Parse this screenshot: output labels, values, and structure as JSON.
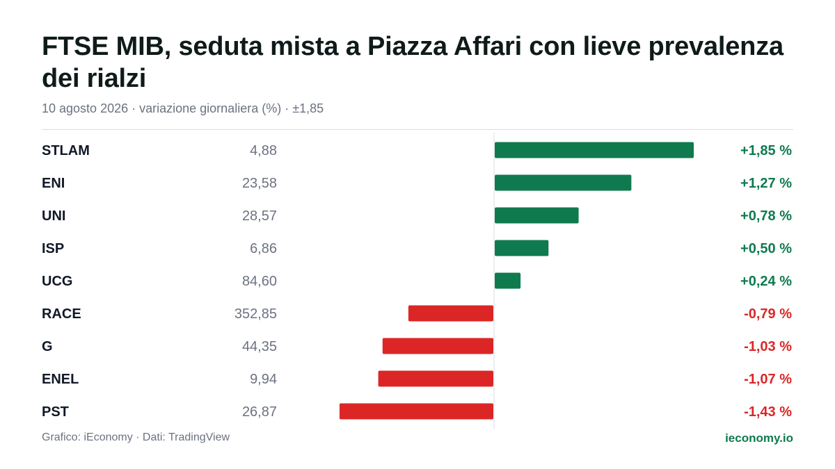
{
  "title": "FTSE MIB, seduta mista a Piazza Affari con lieve prevalenza dei rialzi",
  "subtitle": "10 agosto 2026 · variazione giornaliera (%) · ±1,85",
  "footer": {
    "source": "Grafico: iEconomy · Dati: TradingView",
    "brand": "ieconomy.io"
  },
  "colors": {
    "positive": "#0f7a4e",
    "negative": "#dc2626",
    "axis": "#d9dde2"
  },
  "chart_data": {
    "type": "bar",
    "orientation": "horizontal",
    "xlim": [
      -1.85,
      1.85
    ],
    "categories": [
      "STLAM",
      "ENI",
      "UNI",
      "ISP",
      "UCG",
      "RACE",
      "G",
      "ENEL",
      "PST"
    ],
    "prices": [
      "4,88",
      "23,58",
      "28,57",
      "6,86",
      "84,60",
      "352,85",
      "44,35",
      "9,94",
      "26,87"
    ],
    "values": [
      1.85,
      1.27,
      0.78,
      0.5,
      0.24,
      -0.79,
      -1.03,
      -1.07,
      -1.43
    ],
    "value_labels": [
      "+1,85 %",
      "+1,27 %",
      "+0,78 %",
      "+0,50 %",
      "+0,24 %",
      "-0,79 %",
      "-1,03 %",
      "-1,07 %",
      "-1,43 %"
    ]
  }
}
